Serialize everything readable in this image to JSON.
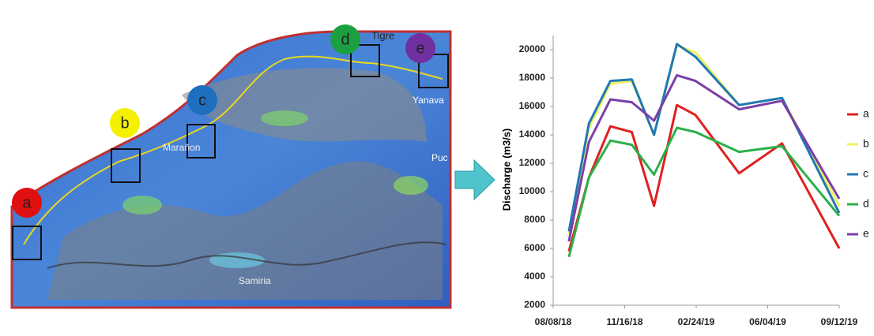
{
  "map": {
    "markers": [
      {
        "label": "a",
        "color": "#e01010"
      },
      {
        "label": "b",
        "color": "#f5f000"
      },
      {
        "label": "c",
        "color": "#1f6fc0"
      },
      {
        "label": "d",
        "color": "#1aa040"
      },
      {
        "label": "e",
        "color": "#7030a0"
      }
    ],
    "places": [
      "Tigre",
      "Yanava",
      "Marañon",
      "Puc",
      "Samiria"
    ]
  },
  "chart_data": {
    "type": "line",
    "y_label": "Discharge (m3/s)",
    "x": [
      "08/30/18",
      "09/27/18",
      "10/27/18",
      "11/26/18",
      "12/27/18",
      "01/28/19",
      "02/23/19",
      "04/25/19",
      "06/24/19",
      "09/12/19"
    ],
    "series": [
      {
        "name": "a",
        "color": "#e02020",
        "values": [
          5800,
          11000,
          14600,
          14200,
          9000,
          16100,
          15400,
          11300,
          13400,
          6000
        ]
      },
      {
        "name": "b",
        "color": "#f0f060",
        "values": [
          7000,
          14500,
          17600,
          17800,
          14000,
          20300,
          19800,
          16100,
          16600,
          9000
        ]
      },
      {
        "name": "c",
        "color": "#1f78b4",
        "values": [
          7200,
          14800,
          17800,
          17900,
          14000,
          20400,
          19500,
          16100,
          16600,
          8500
        ]
      },
      {
        "name": "d",
        "color": "#2bb04a",
        "values": [
          5400,
          11000,
          13600,
          13300,
          11200,
          14500,
          14200,
          12800,
          13200,
          8300
        ]
      },
      {
        "name": "e",
        "color": "#7b3fa8",
        "values": [
          6500,
          13500,
          16500,
          16300,
          15000,
          18200,
          17800,
          15800,
          16400,
          9500
        ]
      }
    ],
    "xlim": [
      "08/08/18",
      "09/12/19"
    ],
    "xticks": [
      "08/08/18",
      "11/16/18",
      "02/24/19",
      "06/04/19",
      "09/12/19"
    ],
    "ylim": [
      2000,
      21000
    ],
    "yticks": [
      2000,
      4000,
      6000,
      8000,
      10000,
      12000,
      14000,
      16000,
      18000,
      20000
    ]
  }
}
